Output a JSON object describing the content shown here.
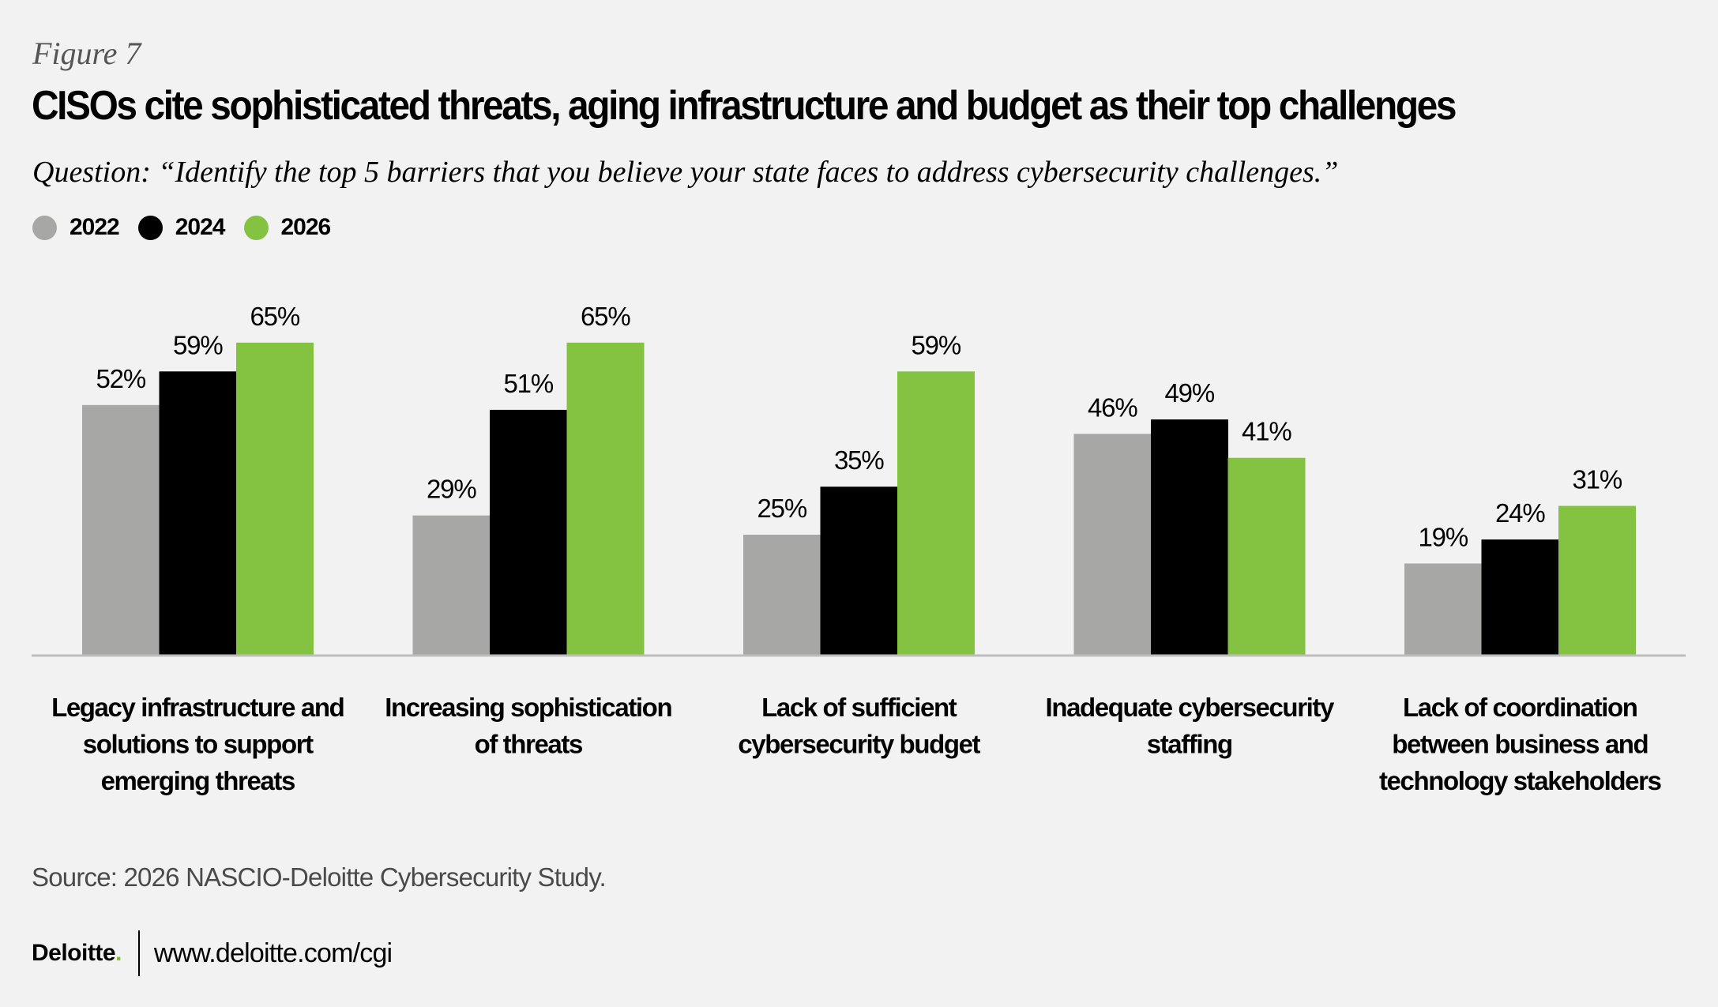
{
  "figure_label": "Figure 7",
  "title": "CISOs cite sophisticated threats, aging infrastructure and budget as their top challenges",
  "question": "Question: “Identify the top 5 barriers that you believe your state faces to address cybersecurity challenges.”",
  "source": "Source: 2026 NASCIO-Deloitte Cybersecurity Study.",
  "footer": {
    "logo_text": "Deloitte",
    "logo_dot": ".",
    "url": "www.deloitte.com/cgi"
  },
  "colors": {
    "background": "#F1F2F1",
    "2022": "#A7A7A5",
    "2024": "#000000",
    "2026": "#84C341",
    "axis": "#BDBDBD"
  },
  "chart_data": {
    "type": "bar",
    "title": "CISOs cite sophisticated threats, aging infrastructure and budget as their top challenges",
    "xlabel": "",
    "ylabel": "",
    "ylim": [
      0,
      100
    ],
    "grid": false,
    "legend_position": "top-left",
    "value_format": "percent",
    "categories": [
      [
        "Legacy infrastructure and",
        "solutions to support",
        "emerging threats"
      ],
      [
        "Increasing sophistication",
        "of threats"
      ],
      [
        "Lack of sufficient",
        "cybersecurity budget"
      ],
      [
        "Inadequate cybersecurity",
        "staffing"
      ],
      [
        "Lack of coordination",
        "between business and",
        "technology stakeholders"
      ]
    ],
    "series": [
      {
        "name": "2022",
        "color": "#A7A7A5",
        "values": [
          52,
          29,
          25,
          46,
          19
        ]
      },
      {
        "name": "2024",
        "color": "#000000",
        "values": [
          59,
          51,
          35,
          49,
          24
        ]
      },
      {
        "name": "2026",
        "color": "#84C341",
        "values": [
          65,
          65,
          59,
          41,
          31
        ]
      }
    ]
  }
}
